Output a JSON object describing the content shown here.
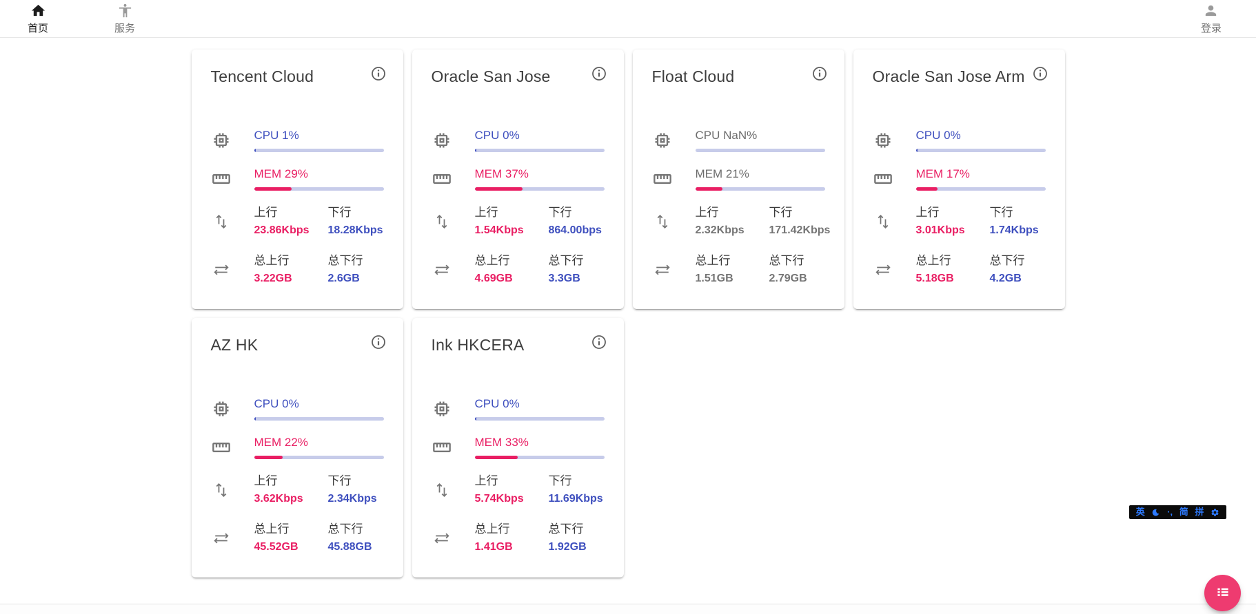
{
  "colors": {
    "pink": "#E91E63",
    "blue": "#3E4FBE",
    "track": "#C7CCEA",
    "fab": "#EE3B70",
    "imeblue": "#2E7BFF"
  },
  "nav": {
    "home": "首页",
    "services": "服务",
    "login": "登录"
  },
  "labels": {
    "up": "上行",
    "down": "下行",
    "total_up": "总上行",
    "total_down": "总下行"
  },
  "servers": [
    {
      "name": "Tencent Cloud",
      "cpu_text": "CPU 1%",
      "cpu_pct": 1,
      "mem_text": "MEM 29%",
      "mem_pct": 29,
      "up": "23.86Kbps",
      "down": "18.28Kbps",
      "total_up": "3.22GB",
      "total_down": "2.6GB",
      "muted": false
    },
    {
      "name": "Oracle San Jose",
      "cpu_text": "CPU 0%",
      "cpu_pct": 0,
      "mem_text": "MEM 37%",
      "mem_pct": 37,
      "up": "1.54Kbps",
      "down": "864.00bps",
      "total_up": "4.69GB",
      "total_down": "3.3GB",
      "muted": false
    },
    {
      "name": "Float Cloud",
      "cpu_text": "CPU NaN%",
      "cpu_pct": null,
      "mem_text": "MEM 21%",
      "mem_pct": 21,
      "up": "2.32Kbps",
      "down": "171.42Kbps",
      "total_up": "1.51GB",
      "total_down": "2.79GB",
      "muted": true
    },
    {
      "name": "Oracle San Jose Arm",
      "cpu_text": "CPU 0%",
      "cpu_pct": 0,
      "mem_text": "MEM 17%",
      "mem_pct": 17,
      "up": "3.01Kbps",
      "down": "1.74Kbps",
      "total_up": "5.18GB",
      "total_down": "4.2GB",
      "muted": false
    },
    {
      "name": "AZ HK",
      "cpu_text": "CPU 0%",
      "cpu_pct": 0,
      "mem_text": "MEM 22%",
      "mem_pct": 22,
      "up": "3.62Kbps",
      "down": "2.34Kbps",
      "total_up": "45.52GB",
      "total_down": "45.88GB",
      "muted": false
    },
    {
      "name": "Ink HKCERA",
      "cpu_text": "CPU 0%",
      "cpu_pct": 0,
      "mem_text": "MEM 33%",
      "mem_pct": 33,
      "up": "5.74Kbps",
      "down": "11.69Kbps",
      "total_up": "1.41GB",
      "total_down": "1.92GB",
      "muted": false
    }
  ],
  "ime": {
    "english": "英",
    "punct": "·,",
    "simplified": "简",
    "pinyin": "拼"
  }
}
